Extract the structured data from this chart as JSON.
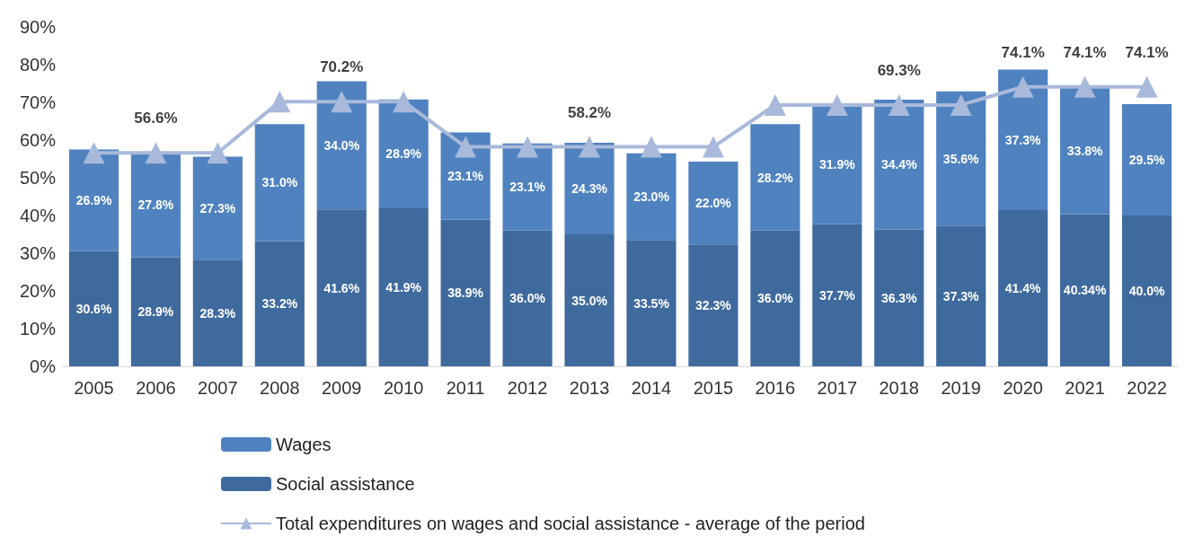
{
  "chart_data": {
    "type": "bar",
    "stacked": true,
    "categories": [
      "2005",
      "2006",
      "2007",
      "2008",
      "2009",
      "2010",
      "2011",
      "2012",
      "2013",
      "2014",
      "2015",
      "2016",
      "2017",
      "2018",
      "2019",
      "2020",
      "2021",
      "2022"
    ],
    "series": [
      {
        "name": "Social assistance",
        "color": "#3f6a9e",
        "values": [
          30.6,
          28.9,
          28.3,
          33.2,
          41.6,
          41.9,
          38.9,
          36.0,
          35.0,
          33.5,
          32.3,
          36.0,
          37.7,
          36.3,
          37.3,
          41.4,
          40.34,
          40.0
        ],
        "value_labels": [
          "30.6%",
          "28.9%",
          "28.3%",
          "33.2%",
          "41.6%",
          "41.9%",
          "38.9%",
          "36.0%",
          "35.0%",
          "33.5%",
          "32.3%",
          "36.0%",
          "37.7%",
          "36.3%",
          "37.3%",
          "41.4%",
          "40.34%",
          "40.0%"
        ]
      },
      {
        "name": "Wages",
        "color": "#4f82bf",
        "values": [
          26.9,
          27.8,
          27.3,
          31.0,
          34.0,
          28.9,
          23.1,
          23.1,
          24.3,
          23.0,
          22.0,
          28.2,
          31.9,
          34.4,
          35.6,
          37.3,
          33.8,
          29.5
        ],
        "value_labels": [
          "26.9%",
          "27.8%",
          "27.3%",
          "31.0%",
          "34.0%",
          "28.9%",
          "23.1%",
          "23.1%",
          "24.3%",
          "23.0%",
          "22.0%",
          "28.2%",
          "31.9%",
          "34.4%",
          "35.6%",
          "37.3%",
          "33.8%",
          "29.5%"
        ]
      },
      {
        "name": "Total expenditures on wages and social assistance - average of the period",
        "type": "line",
        "color": "#a8b9db",
        "marker": "triangle",
        "values": [
          56.6,
          56.6,
          56.6,
          70.2,
          70.2,
          70.2,
          58.2,
          58.2,
          58.2,
          58.2,
          58.2,
          69.3,
          69.3,
          69.3,
          69.3,
          74.1,
          74.1,
          74.1
        ],
        "value_labels": [
          null,
          "56.6%",
          null,
          null,
          "70.2%",
          null,
          null,
          null,
          "58.2%",
          null,
          null,
          null,
          null,
          "69.3%",
          null,
          "74.1%",
          "74.1%",
          "74.1%"
        ]
      }
    ],
    "ylim": [
      0,
      90
    ],
    "yticks": [
      {
        "value": 0,
        "label": "0%"
      },
      {
        "value": 10,
        "label": "10%"
      },
      {
        "value": 20,
        "label": "20%"
      },
      {
        "value": 30,
        "label": "30%"
      },
      {
        "value": 40,
        "label": "40%"
      },
      {
        "value": 50,
        "label": "50%"
      },
      {
        "value": 60,
        "label": "60%"
      },
      {
        "value": 70,
        "label": "70%"
      },
      {
        "value": 80,
        "label": "80%"
      },
      {
        "value": 90,
        "label": "90%"
      }
    ],
    "grid": false,
    "legend": "bottom"
  }
}
